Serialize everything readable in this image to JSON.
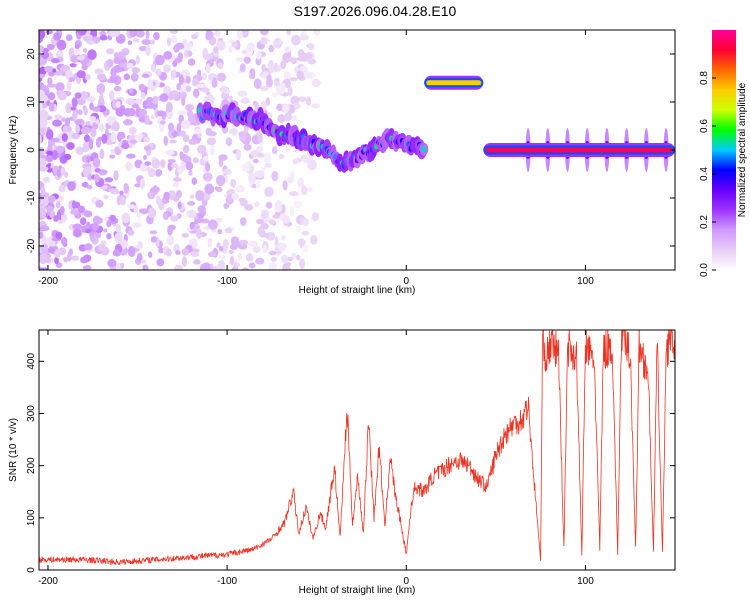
{
  "figure_title": "S197.2026.096.04.28.E10",
  "colors": {
    "snr_line": "#ee3322",
    "axes": "#000000",
    "colormap": [
      "#ffffff",
      "#e6ccf5",
      "#cf99ff",
      "#9f33ff",
      "#6600ff",
      "#0000ff",
      "#00ccff",
      "#00ff00",
      "#ccff00",
      "#ffcc00",
      "#ff6600",
      "#ff0033",
      "#ff0099"
    ]
  },
  "chart_data": [
    {
      "type": "heatmap",
      "title": "",
      "xlabel": "Height of straight line (km)",
      "ylabel": "Frequency (Hz)",
      "xlim": [
        -205,
        150
      ],
      "ylim": [
        -25,
        25
      ],
      "xticks": [
        -200,
        -100,
        0,
        100
      ],
      "yticks": [
        -20,
        -10,
        0,
        10,
        20
      ],
      "tick_labels_x": [
        "-200",
        "-100",
        "0",
        "100"
      ],
      "tick_labels_y": [
        "-20",
        "-10",
        "0",
        "10",
        "20"
      ],
      "colorbar": {
        "label": "Normalized spectral amplitude",
        "range": [
          0.0,
          1.0
        ],
        "ticks": [
          0.0,
          0.2,
          0.4,
          0.6,
          0.8
        ],
        "tick_labels": [
          "0.0",
          "0.2",
          "0.4",
          "0.6",
          "0.8"
        ]
      },
      "features": [
        {
          "name": "diffuse background noise",
          "x_range": [
            -205,
            -50
          ],
          "freq_range": [
            -25,
            25
          ],
          "amplitude": 0.15
        },
        {
          "name": "descending trace",
          "x": [
            -115,
            -95,
            -80,
            -70,
            -55,
            -45,
            -35,
            -25,
            -10,
            0,
            10
          ],
          "freq": [
            7.5,
            7,
            6.5,
            3,
            2,
            0,
            -3,
            -1,
            2,
            1,
            0.5
          ],
          "amplitude": 0.35
        },
        {
          "name": "isolated line",
          "x_range": [
            10,
            43
          ],
          "freq": 14,
          "amplitude": 0.75
        },
        {
          "name": "steady line",
          "x_range": [
            43,
            150
          ],
          "freq": 0,
          "amplitude": 0.95
        }
      ]
    },
    {
      "type": "line",
      "title": "",
      "xlabel": "Height of straight line (km)",
      "ylabel": "SNR (10 * v/v)",
      "xlim": [
        -205,
        150
      ],
      "ylim": [
        0,
        460
      ],
      "xticks": [
        -200,
        -100,
        0,
        100
      ],
      "yticks": [
        0,
        100,
        200,
        300,
        400
      ],
      "tick_labels_x": [
        "-200",
        "-100",
        "0",
        "100"
      ],
      "tick_labels_y": [
        "0",
        "100",
        "200",
        "300",
        "400"
      ],
      "series": [
        {
          "name": "SNR",
          "x": [
            -205,
            -180,
            -160,
            -140,
            -120,
            -100,
            -85,
            -75,
            -68,
            -63,
            -60,
            -56,
            -52,
            -48,
            -45,
            -40,
            -37,
            -33,
            -30,
            -27,
            -24,
            -21,
            -18,
            -15,
            -12,
            -9,
            -6,
            -3,
            0,
            3,
            5,
            10,
            15,
            20,
            25,
            30,
            35,
            40,
            45,
            50,
            55,
            60,
            65,
            68,
            70,
            73,
            75,
            76,
            77,
            78,
            80,
            85,
            88,
            90,
            95,
            98,
            100,
            105,
            108,
            110,
            115,
            118,
            120,
            125,
            128,
            130,
            135,
            138,
            140,
            143,
            145,
            148,
            150
          ],
          "y": [
            20,
            20,
            15,
            20,
            25,
            30,
            40,
            60,
            90,
            150,
            70,
            120,
            60,
            110,
            80,
            200,
            60,
            310,
            90,
            180,
            70,
            290,
            100,
            240,
            80,
            220,
            140,
            90,
            30,
            130,
            160,
            150,
            180,
            190,
            205,
            210,
            200,
            175,
            160,
            220,
            260,
            280,
            290,
            320,
            230,
            100,
            20,
            420,
            440,
            400,
            430,
            420,
            40,
            430,
            410,
            30,
            430,
            400,
            40,
            420,
            430,
            30,
            440,
            420,
            40,
            430,
            380,
            35,
            440,
            30,
            420,
            450,
            430
          ]
        }
      ]
    }
  ]
}
